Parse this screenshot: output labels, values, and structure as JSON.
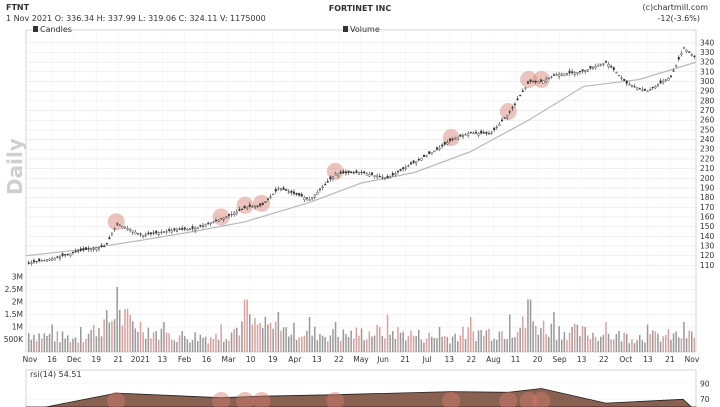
{
  "header": {
    "symbol": "FTNT",
    "company": "FORTINET INC",
    "watermark": "(c)chartmill.com",
    "quote": "1 Nov 2021   O: 336.34   H: 337.99   L: 319.06   C: 324.11   V: 1175000",
    "change": "-12(-3.6%)",
    "period": "Daily",
    "legend_candles": "Candles",
    "legend_volume": "Volume",
    "rsi_label": "rsi(14) 54.51"
  },
  "colors": {
    "candle": "#333333",
    "ma": "#b8b8b8",
    "volume_bar": "#999999",
    "volume_accent": "#d9a0a0",
    "highlight": "#d47d6e",
    "grid": "#e6e6e6",
    "rsi_fill": "#6b3a26"
  },
  "chart_data": [
    {
      "type": "line",
      "title": "FORTINET INC",
      "series": [
        {
          "name": "Candles",
          "x": [
            "2020-11-02",
            "2020-11-16",
            "2020-12-01",
            "2020-12-15",
            "2020-12-21",
            "2021-01-04",
            "2021-01-19",
            "2021-02-01",
            "2021-02-16",
            "2021-03-01",
            "2021-03-10",
            "2021-03-19",
            "2021-04-05",
            "2021-04-19",
            "2021-05-03",
            "2021-05-17",
            "2021-06-01",
            "2021-06-14",
            "2021-06-21",
            "2021-07-01",
            "2021-07-12",
            "2021-07-22",
            "2021-08-02",
            "2021-08-09",
            "2021-08-16",
            "2021-08-30",
            "2021-09-13",
            "2021-09-24",
            "2021-10-05",
            "2021-10-18",
            "2021-10-25",
            "2021-11-01"
          ],
          "values": [
            112,
            117,
            125,
            130,
            153,
            141,
            146,
            148,
            158,
            170,
            172,
            190,
            178,
            205,
            206,
            200,
            217,
            231,
            240,
            247,
            246,
            267,
            300,
            300,
            307,
            310,
            320,
            298,
            290,
            305,
            335,
            324
          ]
        },
        {
          "name": "Moving average",
          "x": [
            "2020-11-02",
            "2020-12-01",
            "2021-01-04",
            "2021-02-01",
            "2021-03-01",
            "2021-04-05",
            "2021-05-03",
            "2021-06-01",
            "2021-07-01",
            "2021-08-02",
            "2021-09-01",
            "2021-10-01",
            "2021-11-01"
          ],
          "values": [
            120,
            126,
            136,
            145,
            155,
            175,
            195,
            206,
            227,
            260,
            295,
            302,
            320
          ]
        }
      ],
      "highlights": [
        "2020-12-21",
        "2021-02-16",
        "2021-03-01",
        "2021-03-10",
        "2021-04-19",
        "2021-06-21",
        "2021-07-22",
        "2021-08-02",
        "2021-08-09"
      ],
      "y_ticks": [
        110,
        120,
        130,
        140,
        150,
        160,
        170,
        180,
        190,
        200,
        210,
        220,
        230,
        240,
        250,
        260,
        270,
        280,
        290,
        300,
        310,
        320,
        330,
        340
      ],
      "ylim": [
        100,
        345
      ],
      "grid": true
    },
    {
      "type": "bar",
      "series": [
        {
          "name": "Volume",
          "x": [
            "2020-11-02",
            "2020-11-16",
            "2020-12-01",
            "2020-12-21",
            "2021-01-15",
            "2021-02-16",
            "2021-03-01",
            "2021-03-19",
            "2021-04-05",
            "2021-04-19",
            "2021-05-17",
            "2021-06-14",
            "2021-07-01",
            "2021-07-22",
            "2021-08-02",
            "2021-08-16",
            "2021-09-13",
            "2021-10-05",
            "2021-10-25",
            "2021-11-01"
          ],
          "values": [
            1.4,
            1.1,
            1.0,
            2.6,
            1.2,
            1.1,
            2.1,
            1.6,
            1.4,
            1.2,
            1.5,
            1.0,
            1.4,
            1.5,
            2.1,
            1.6,
            1.2,
            1.1,
            1.2,
            1.2
          ]
        }
      ],
      "y_ticks_labels": [
        "500K",
        "1M",
        "1.5M",
        "2M",
        "2.5M",
        "3M"
      ],
      "y_ticks": [
        0.5,
        1,
        1.5,
        2,
        2.5,
        3
      ],
      "ylim": [
        0,
        3.2
      ],
      "x_tick_labels": [
        "Nov",
        "16",
        "Dec",
        "19",
        "21",
        "2021",
        "13",
        "Feb",
        "16",
        "Mar",
        "10",
        "19",
        "Apr",
        "13",
        "22",
        "May",
        "Jun",
        "21",
        "Jul",
        "13",
        "22",
        "Aug",
        "11",
        "20",
        "Sep",
        "13",
        "22",
        "Oct",
        "13",
        "21",
        "Nov"
      ]
    },
    {
      "type": "area",
      "series": [
        {
          "name": "rsi(14)",
          "x": [
            "2020-11-02",
            "2020-12-21",
            "2021-02-16",
            "2021-03-10",
            "2021-04-19",
            "2021-06-21",
            "2021-07-22",
            "2021-08-09",
            "2021-09-13",
            "2021-10-25",
            "2021-11-01"
          ],
          "values": [
            55,
            78,
            72,
            74,
            76,
            80,
            79,
            84,
            65,
            70,
            54.51
          ]
        }
      ],
      "y_ticks": [
        70,
        90
      ],
      "ylim": [
        60,
        95
      ]
    }
  ]
}
